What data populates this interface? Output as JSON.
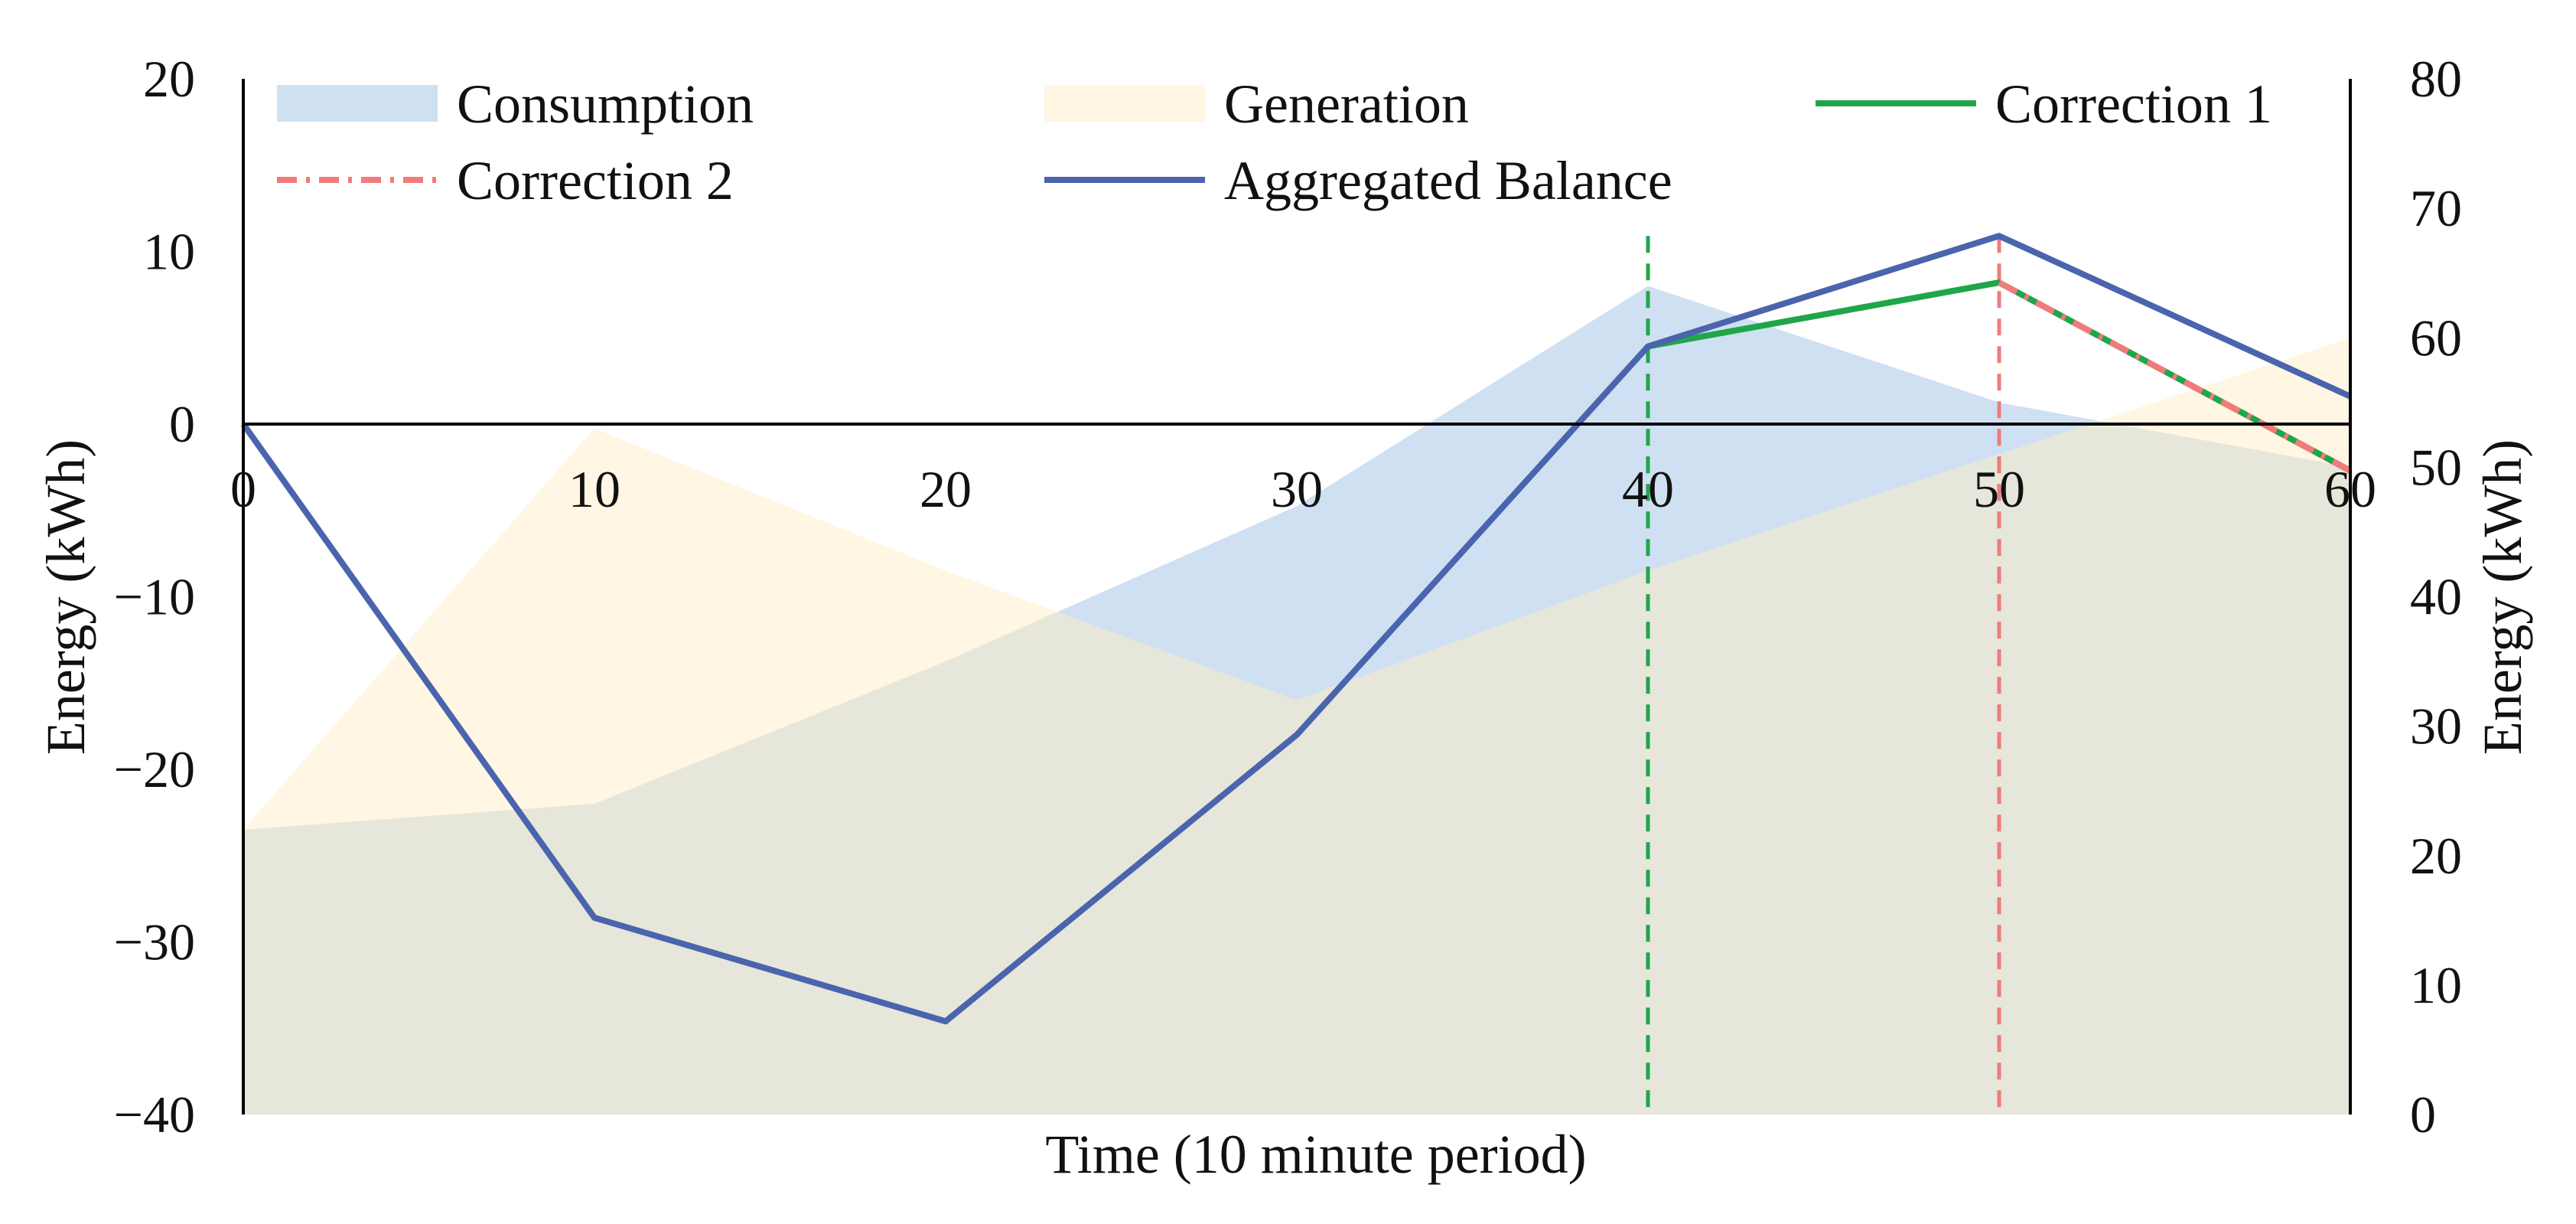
{
  "chart_data": {
    "type": "area",
    "title": "",
    "xlabel": "Time (10 minute period)",
    "ylabel_left": "Energy (kWh)",
    "ylabel_right": "Energy (kWh)",
    "x": [
      0,
      10,
      20,
      30,
      40,
      50,
      60
    ],
    "x_ticks": [
      "0",
      "10",
      "20",
      "30",
      "40",
      "50",
      "60"
    ],
    "xlim": [
      0,
      60
    ],
    "ylim_left": [
      -40,
      20
    ],
    "ylim_right": [
      0,
      80
    ],
    "y_ticks_left": [
      "20",
      "10",
      "0",
      "−10",
      "−20",
      "−30",
      "−40"
    ],
    "y_ticks_right": [
      "80",
      "70",
      "60",
      "50",
      "40",
      "30",
      "20",
      "10",
      "0"
    ],
    "series": [
      {
        "name": "Consumption",
        "kind": "area",
        "axis": "right",
        "color": "#cfe0f2",
        "values": [
          22,
          24,
          35,
          47,
          64,
          55,
          50
        ]
      },
      {
        "name": "Generation",
        "kind": "area",
        "axis": "right",
        "color": "#fff6e3",
        "values": [
          22,
          53,
          42,
          32,
          42,
          51,
          60
        ]
      },
      {
        "name": "Correction 1",
        "kind": "line",
        "axis": "left",
        "color": "#1fa64a",
        "dash": "solid",
        "x": [
          40,
          50,
          60
        ],
        "values": [
          4.5,
          8.2,
          -2.7
        ]
      },
      {
        "name": "Correction 2",
        "kind": "line",
        "axis": "left",
        "color": "#f07b7b",
        "dash": "dashdot",
        "x": [
          50,
          60
        ],
        "values": [
          8.2,
          -2.7
        ]
      },
      {
        "name": "Aggregated Balance",
        "kind": "line",
        "axis": "left",
        "color": "#4a64ad",
        "dash": "solid",
        "x": [
          0,
          10,
          20,
          30,
          40,
          50,
          60
        ],
        "values": [
          0,
          -28.6,
          -34.6,
          -18,
          4.5,
          10.9,
          1.6
        ]
      }
    ],
    "vertical_markers": [
      {
        "x": 40,
        "color": "#1fa64a",
        "style": "dashed"
      },
      {
        "x": 50,
        "color": "#f07b7b",
        "style": "dashed"
      }
    ],
    "overlap_color": "#e6e6da",
    "zero_line": true,
    "legend_position": "top"
  }
}
